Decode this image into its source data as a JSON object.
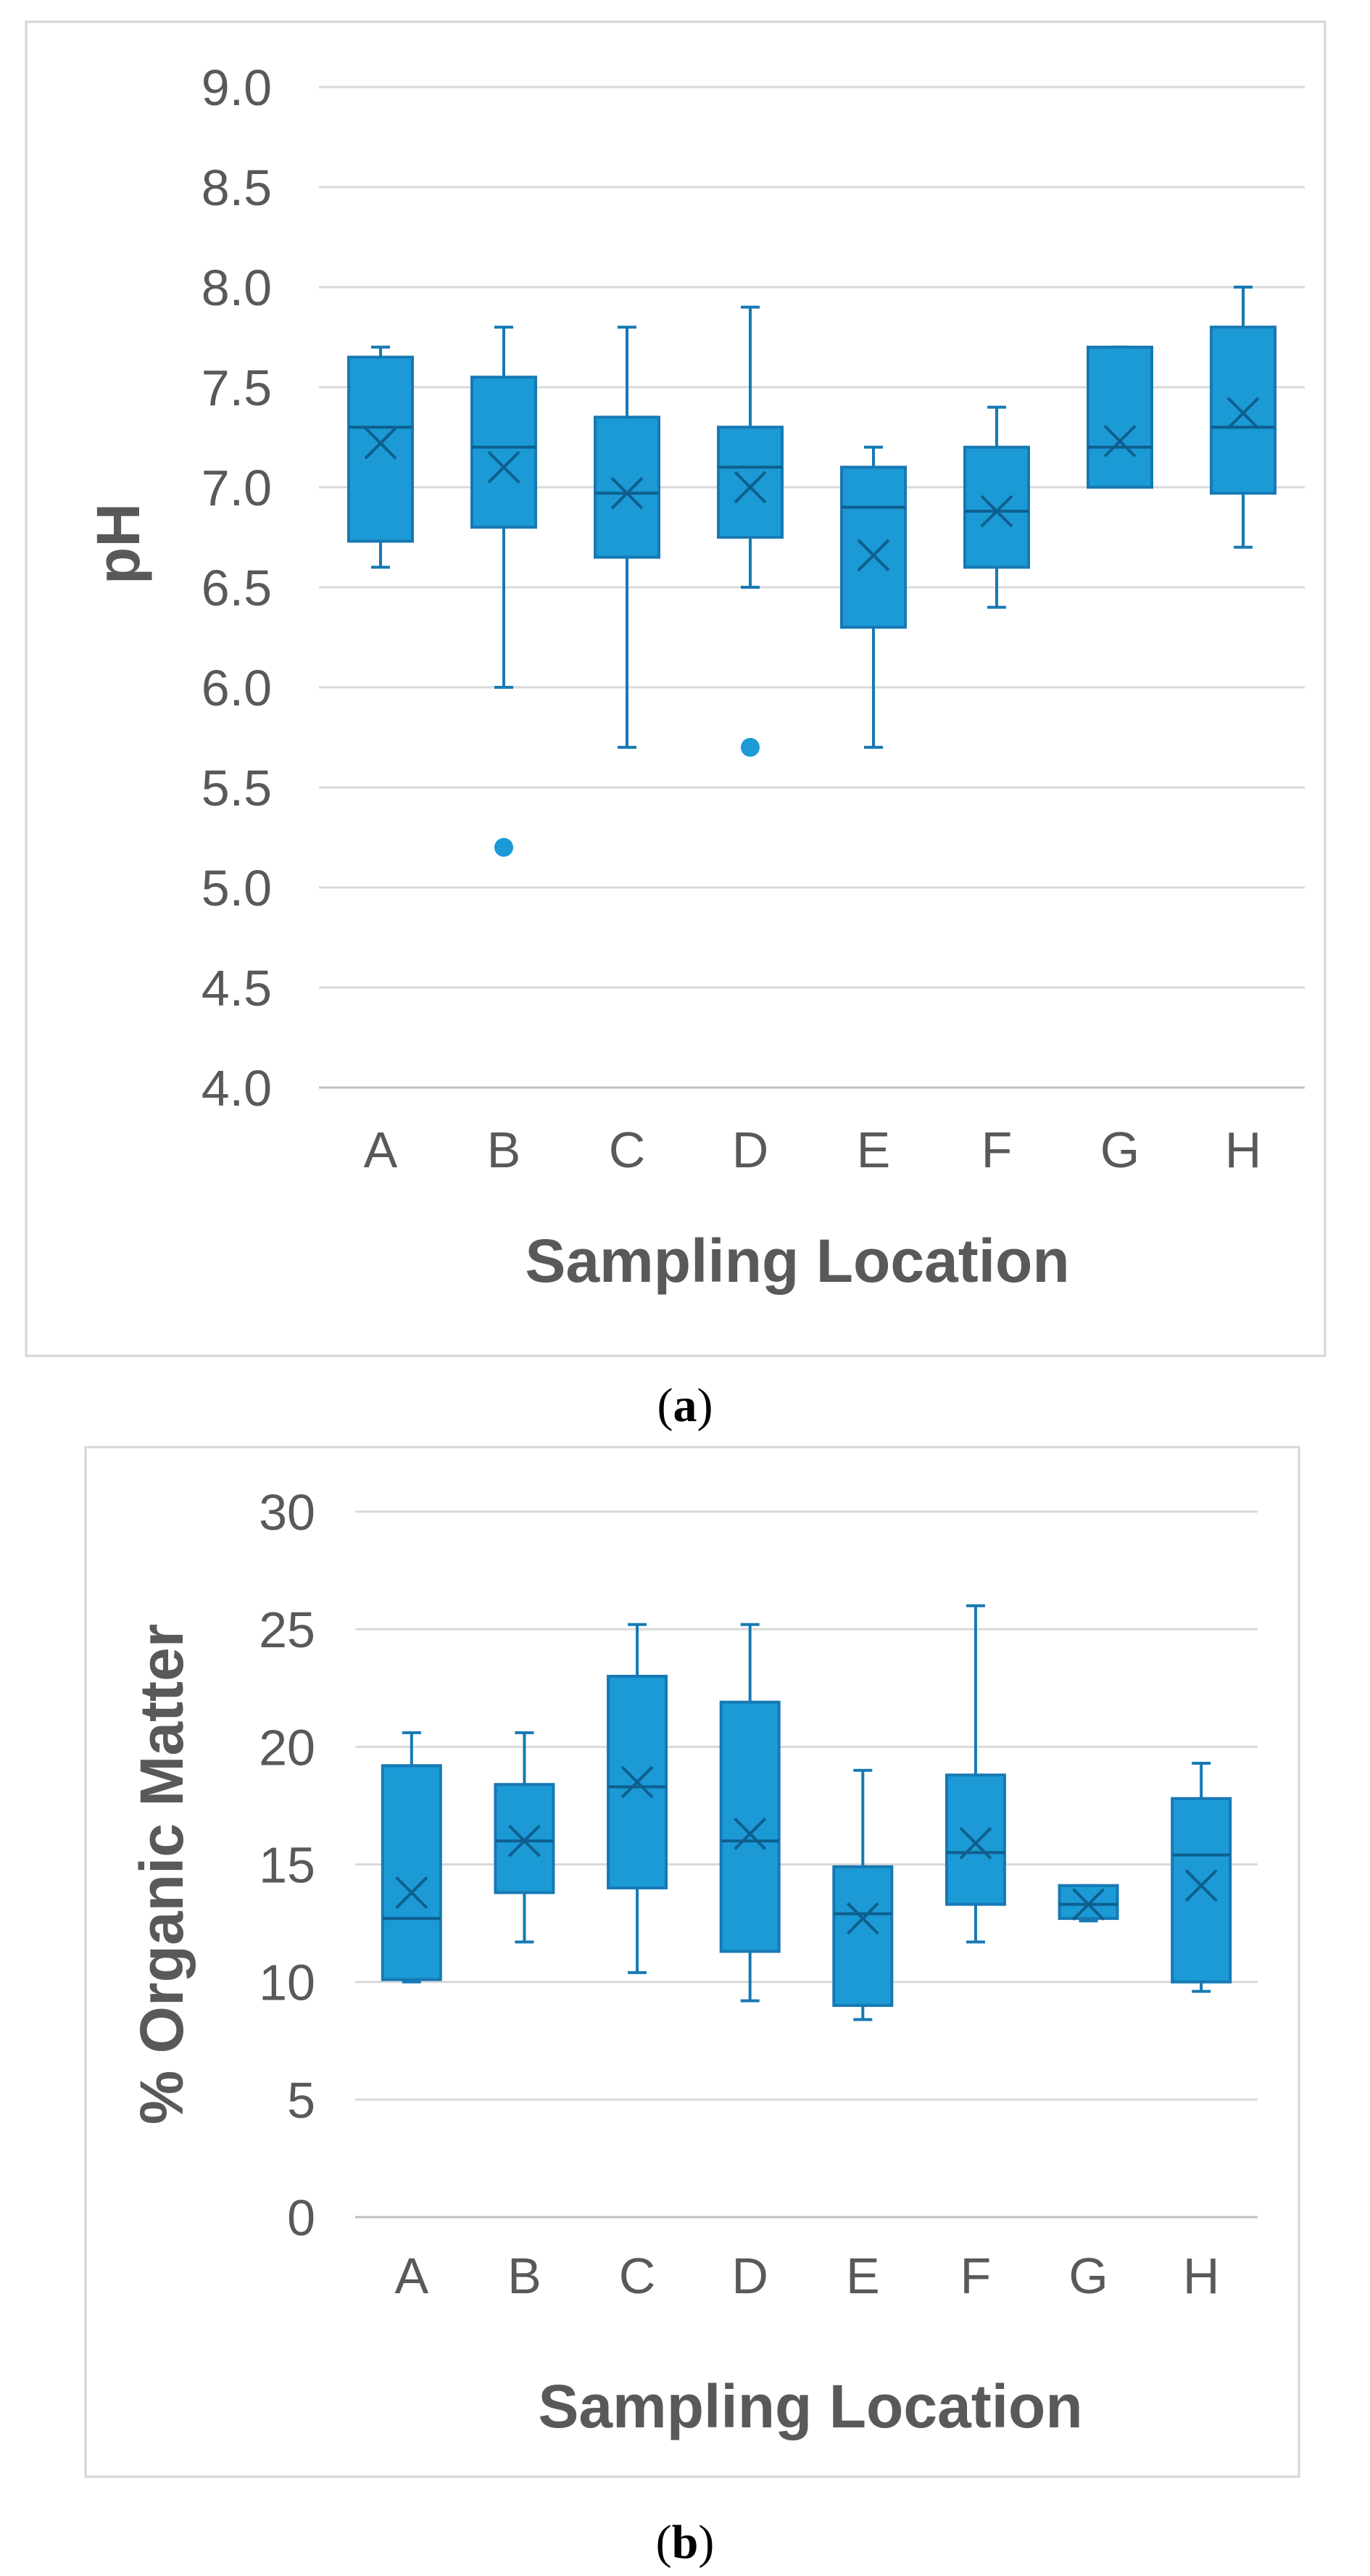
{
  "colors": {
    "box_fill": "#1b9ad6",
    "box_edge": "#1779b3",
    "mean_marker": "#0e5f8e"
  },
  "chart_data": [
    {
      "id": "panel-a",
      "type": "box",
      "caption": {
        "open": "(",
        "letter": "a",
        "close": ")"
      },
      "xlabel": "Sampling Location",
      "ylabel": "pH",
      "ylim": [
        4.0,
        9.0
      ],
      "ytick_step": 0.5,
      "ytick_labels": [
        "4.0",
        "4.5",
        "5.0",
        "5.5",
        "6.0",
        "6.5",
        "7.0",
        "7.5",
        "8.0",
        "8.5",
        "9.0"
      ],
      "categories": [
        "A",
        "B",
        "C",
        "D",
        "E",
        "F",
        "G",
        "H"
      ],
      "boxes": [
        {
          "label": "A",
          "min": 6.6,
          "q1": 6.73,
          "median": 7.3,
          "q3": 7.65,
          "max": 7.7,
          "mean": 7.22,
          "outliers": []
        },
        {
          "label": "B",
          "min": 6.0,
          "q1": 6.8,
          "median": 7.2,
          "q3": 7.55,
          "max": 7.8,
          "mean": 7.1,
          "outliers": [
            5.2
          ]
        },
        {
          "label": "C",
          "min": 5.7,
          "q1": 6.65,
          "median": 6.97,
          "q3": 7.35,
          "max": 7.8,
          "mean": 6.97,
          "outliers": []
        },
        {
          "label": "D",
          "min": 6.5,
          "q1": 6.75,
          "median": 7.1,
          "q3": 7.3,
          "max": 7.9,
          "mean": 7.0,
          "outliers": [
            5.7
          ]
        },
        {
          "label": "E",
          "min": 5.7,
          "q1": 6.3,
          "median": 6.9,
          "q3": 7.1,
          "max": 7.2,
          "mean": 6.66,
          "outliers": []
        },
        {
          "label": "F",
          "min": 6.4,
          "q1": 6.6,
          "median": 6.88,
          "q3": 7.2,
          "max": 7.4,
          "mean": 6.88,
          "outliers": []
        },
        {
          "label": "G",
          "min": 7.0,
          "q1": 7.0,
          "median": 7.2,
          "q3": 7.7,
          "max": 7.7,
          "mean": 7.23,
          "outliers": []
        },
        {
          "label": "H",
          "min": 6.7,
          "q1": 6.97,
          "median": 7.3,
          "q3": 7.8,
          "max": 8.0,
          "mean": 7.37,
          "outliers": []
        }
      ]
    },
    {
      "id": "panel-b",
      "type": "box",
      "caption": {
        "open": "(",
        "letter": "b",
        "close": ")"
      },
      "xlabel": "Sampling Location",
      "ylabel": "% Organic Matter",
      "ylim": [
        0,
        30
      ],
      "ytick_step": 5,
      "ytick_labels": [
        "0",
        "5",
        "10",
        "15",
        "20",
        "25",
        "30"
      ],
      "categories": [
        "A",
        "B",
        "C",
        "D",
        "E",
        "F",
        "G",
        "H"
      ],
      "boxes": [
        {
          "label": "A",
          "min": 10.0,
          "q1": 10.1,
          "median": 12.7,
          "q3": 19.2,
          "max": 20.6,
          "mean": 13.8,
          "outliers": []
        },
        {
          "label": "B",
          "min": 11.7,
          "q1": 13.8,
          "median": 16.0,
          "q3": 18.4,
          "max": 20.6,
          "mean": 16.0,
          "outliers": []
        },
        {
          "label": "C",
          "min": 10.4,
          "q1": 14.0,
          "median": 18.3,
          "q3": 23.0,
          "max": 25.2,
          "mean": 18.5,
          "outliers": []
        },
        {
          "label": "D",
          "min": 9.2,
          "q1": 11.3,
          "median": 16.0,
          "q3": 21.9,
          "max": 25.2,
          "mean": 16.3,
          "outliers": []
        },
        {
          "label": "E",
          "min": 8.4,
          "q1": 9.0,
          "median": 12.9,
          "q3": 14.9,
          "max": 19.0,
          "mean": 12.7,
          "outliers": []
        },
        {
          "label": "F",
          "min": 11.7,
          "q1": 13.3,
          "median": 15.5,
          "q3": 18.8,
          "max": 26.0,
          "mean": 15.9,
          "outliers": []
        },
        {
          "label": "G",
          "min": 12.6,
          "q1": 12.7,
          "median": 13.3,
          "q3": 14.1,
          "max": 14.1,
          "mean": 13.3,
          "outliers": []
        },
        {
          "label": "H",
          "min": 9.6,
          "q1": 10.0,
          "median": 15.4,
          "q3": 17.8,
          "max": 19.3,
          "mean": 14.1,
          "outliers": []
        }
      ]
    }
  ]
}
